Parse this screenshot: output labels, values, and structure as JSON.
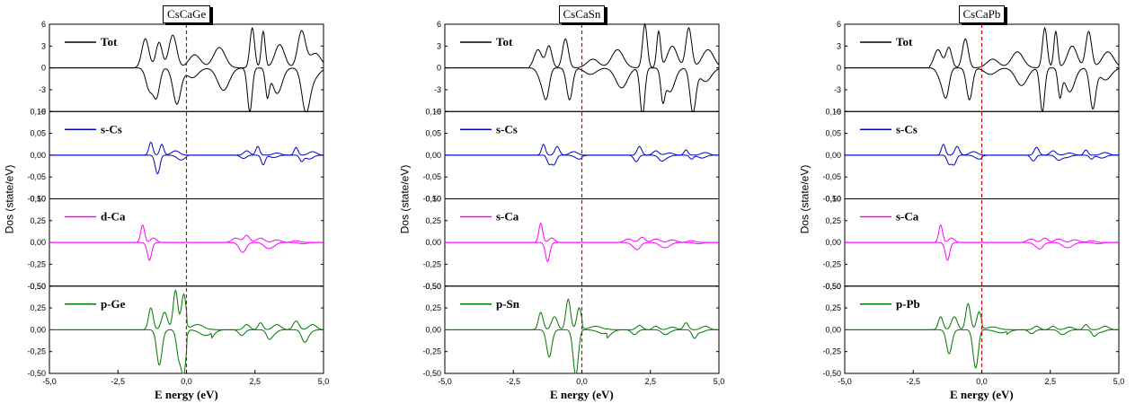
{
  "chart_data": [
    {
      "type": "line",
      "title": "CsCaGe",
      "xlabel": "E nergy (eV)",
      "ylabel": "Dos (state/eV)",
      "xlim": [
        -5.0,
        5.0
      ],
      "xticks": [
        "-5,0",
        "-2,5",
        "0,0",
        "2,5",
        "5,0"
      ],
      "fermi_level": 0.0,
      "panels": [
        {
          "name": "Tot",
          "color": "#000000",
          "ylim": [
            -6,
            6
          ],
          "yticks": [
            "6",
            "3",
            "0",
            "-3",
            "-6"
          ],
          "peaks": [
            [
              -1.5,
              4.0,
              0.18
            ],
            [
              -1.0,
              3.5,
              0.16
            ],
            [
              -0.5,
              4.5,
              0.2
            ],
            [
              0.3,
              1.8,
              0.3
            ],
            [
              1.2,
              2.8,
              0.3
            ],
            [
              2.4,
              5.5,
              0.12
            ],
            [
              2.8,
              5.0,
              0.1
            ],
            [
              3.4,
              3.2,
              0.25
            ],
            [
              4.2,
              5.0,
              0.2
            ],
            [
              4.7,
              2.0,
              0.3
            ]
          ],
          "asym": 0.15
        },
        {
          "name": "s-Cs",
          "color": "#0000cc",
          "ylim": [
            -0.1,
            0.1
          ],
          "yticks": [
            "0,10",
            "0,05",
            "0,00",
            "-0,05",
            "-0,10"
          ],
          "peaks": [
            [
              -1.3,
              0.03,
              0.1
            ],
            [
              -0.9,
              0.025,
              0.1
            ],
            [
              -0.4,
              0.01,
              0.2
            ],
            [
              2.2,
              0.01,
              0.15
            ],
            [
              2.6,
              0.02,
              0.1
            ],
            [
              3.3,
              0.005,
              0.2
            ],
            [
              4.0,
              0.018,
              0.1
            ],
            [
              4.6,
              0.008,
              0.2
            ]
          ],
          "asym": 0.2
        },
        {
          "name": "d-Ca",
          "color": "#ff00ff",
          "ylim": [
            -0.5,
            0.5
          ],
          "yticks": [
            "0,50",
            "0,25",
            "0,00",
            "-0,25",
            "-0,50"
          ],
          "peaks": [
            [
              -1.6,
              0.2,
              0.1
            ],
            [
              -1.2,
              0.05,
              0.15
            ],
            [
              1.8,
              0.05,
              0.2
            ],
            [
              2.2,
              0.08,
              0.15
            ],
            [
              2.7,
              0.05,
              0.2
            ],
            [
              3.3,
              0.03,
              0.2
            ],
            [
              4.0,
              0.02,
              0.2
            ]
          ],
          "asym": 0.25
        },
        {
          "name": "p-Ge",
          "color": "#007700",
          "ylim": [
            -0.5,
            0.5
          ],
          "yticks": [
            "0,50",
            "0,25",
            "0,00",
            "-0,25",
            "-0,50"
          ],
          "peaks": [
            [
              -1.3,
              0.25,
              0.12
            ],
            [
              -0.8,
              0.2,
              0.15
            ],
            [
              -0.4,
              0.45,
              0.12
            ],
            [
              -0.1,
              0.4,
              0.12
            ],
            [
              0.4,
              0.15,
              0.3
            ],
            [
              2.2,
              0.06,
              0.15
            ],
            [
              2.7,
              0.08,
              0.12
            ],
            [
              3.3,
              0.06,
              0.2
            ],
            [
              4.0,
              0.1,
              0.15
            ],
            [
              4.6,
              0.06,
              0.2
            ]
          ],
          "asym": 0.3
        }
      ]
    },
    {
      "type": "line",
      "title": "CsCaSn",
      "xlabel": "E nergy (eV)",
      "ylabel": "Dos (state/eV)",
      "xlim": [
        -5.0,
        5.0
      ],
      "xticks": [
        "-5,0",
        "-2,5",
        "0,0",
        "2,5",
        "5,0"
      ],
      "fermi_level": 0.0,
      "panels": [
        {
          "name": "Tot",
          "color": "#000000",
          "ylim": [
            -6,
            6
          ],
          "yticks": [
            "6",
            "3",
            "0",
            "-3",
            "-6"
          ],
          "peaks": [
            [
              -1.6,
              2.5,
              0.2
            ],
            [
              -1.2,
              3.0,
              0.15
            ],
            [
              -0.6,
              4.0,
              0.15
            ],
            [
              0.4,
              1.2,
              0.3
            ],
            [
              1.3,
              2.5,
              0.3
            ],
            [
              2.3,
              6.0,
              0.12
            ],
            [
              2.8,
              5.0,
              0.1
            ],
            [
              3.3,
              3.0,
              0.25
            ],
            [
              3.9,
              5.5,
              0.15
            ],
            [
              4.6,
              2.5,
              0.3
            ]
          ],
          "asym": 0.15
        },
        {
          "name": "s-Cs",
          "color": "#0000cc",
          "ylim": [
            -0.1,
            0.1
          ],
          "yticks": [
            "0,10",
            "0,05",
            "0,00",
            "-0,05",
            "-0,10"
          ],
          "peaks": [
            [
              -1.4,
              0.025,
              0.1
            ],
            [
              -0.9,
              0.02,
              0.12
            ],
            [
              -0.3,
              0.008,
              0.2
            ],
            [
              2.1,
              0.02,
              0.12
            ],
            [
              2.7,
              0.01,
              0.15
            ],
            [
              3.2,
              0.005,
              0.2
            ],
            [
              3.8,
              0.012,
              0.1
            ],
            [
              4.5,
              0.006,
              0.2
            ]
          ],
          "asym": 0.2
        },
        {
          "name": "s-Ca",
          "color": "#ff00ff",
          "ylim": [
            -0.5,
            0.5
          ],
          "yticks": [
            "0,50",
            "0,25",
            "0,00",
            "-0,25",
            "-0,50"
          ],
          "peaks": [
            [
              -1.5,
              0.22,
              0.1
            ],
            [
              -1.1,
              0.05,
              0.15
            ],
            [
              1.7,
              0.04,
              0.2
            ],
            [
              2.2,
              0.06,
              0.15
            ],
            [
              2.7,
              0.04,
              0.2
            ],
            [
              3.3,
              0.03,
              0.2
            ],
            [
              4.0,
              0.02,
              0.2
            ]
          ],
          "asym": 0.25
        },
        {
          "name": "p-Sn",
          "color": "#007700",
          "ylim": [
            -0.5,
            0.5
          ],
          "yticks": [
            "0,50",
            "0,25",
            "0,00",
            "-0,25",
            "-0,50"
          ],
          "peaks": [
            [
              -1.5,
              0.2,
              0.12
            ],
            [
              -1.0,
              0.15,
              0.15
            ],
            [
              -0.5,
              0.35,
              0.12
            ],
            [
              -0.1,
              0.25,
              0.12
            ],
            [
              0.5,
              0.1,
              0.3
            ],
            [
              2.1,
              0.05,
              0.15
            ],
            [
              2.7,
              0.04,
              0.15
            ],
            [
              3.3,
              0.03,
              0.2
            ],
            [
              3.8,
              0.08,
              0.12
            ],
            [
              4.5,
              0.04,
              0.2
            ]
          ],
          "asym": 0.3
        }
      ]
    },
    {
      "type": "line",
      "title": "CsCaPb",
      "xlabel": "E nergy (eV)",
      "ylabel": "Dos (state/eV)",
      "xlim": [
        -5.0,
        5.0
      ],
      "xticks": [
        "-5,0",
        "-2,5",
        "0,0",
        "2,5",
        "5,0"
      ],
      "fermi_level": 0.0,
      "panels": [
        {
          "name": "Tot",
          "color": "#000000",
          "ylim": [
            -6,
            6
          ],
          "yticks": [
            "6",
            "3",
            "0",
            "-3",
            "-6"
          ],
          "peaks": [
            [
              -1.6,
              2.5,
              0.2
            ],
            [
              -1.2,
              2.8,
              0.15
            ],
            [
              -0.6,
              4.0,
              0.15
            ],
            [
              0.4,
              1.2,
              0.3
            ],
            [
              1.3,
              2.2,
              0.3
            ],
            [
              2.3,
              5.5,
              0.12
            ],
            [
              2.7,
              5.0,
              0.1
            ],
            [
              3.3,
              3.0,
              0.25
            ],
            [
              3.9,
              5.0,
              0.15
            ],
            [
              4.6,
              2.2,
              0.3
            ]
          ],
          "asym": 0.15
        },
        {
          "name": "s-Cs",
          "color": "#0000cc",
          "ylim": [
            -0.1,
            0.1
          ],
          "yticks": [
            "0,10",
            "0,05",
            "0,00",
            "-0,05",
            "-0,10"
          ],
          "peaks": [
            [
              -1.4,
              0.025,
              0.1
            ],
            [
              -0.9,
              0.02,
              0.12
            ],
            [
              -0.3,
              0.008,
              0.2
            ],
            [
              2.0,
              0.018,
              0.12
            ],
            [
              2.6,
              0.01,
              0.15
            ],
            [
              3.2,
              0.005,
              0.2
            ],
            [
              3.8,
              0.012,
              0.1
            ],
            [
              4.5,
              0.006,
              0.2
            ]
          ],
          "asym": 0.2
        },
        {
          "name": "s-Ca",
          "color": "#ff00ff",
          "ylim": [
            -0.5,
            0.5
          ],
          "yticks": [
            "0,50",
            "0,25",
            "0,00",
            "-0,25",
            "-0,50"
          ],
          "peaks": [
            [
              -1.5,
              0.2,
              0.1
            ],
            [
              -1.1,
              0.05,
              0.15
            ],
            [
              1.8,
              0.04,
              0.2
            ],
            [
              2.3,
              0.05,
              0.15
            ],
            [
              2.8,
              0.04,
              0.2
            ],
            [
              3.4,
              0.03,
              0.2
            ],
            [
              4.0,
              0.02,
              0.2
            ]
          ],
          "asym": 0.25
        },
        {
          "name": "p-Pb",
          "color": "#007700",
          "ylim": [
            -0.5,
            0.5
          ],
          "yticks": [
            "0,50",
            "0,25",
            "0,00",
            "-0,25",
            "-0,50"
          ],
          "peaks": [
            [
              -1.5,
              0.15,
              0.12
            ],
            [
              -1.0,
              0.15,
              0.15
            ],
            [
              -0.5,
              0.3,
              0.12
            ],
            [
              -0.1,
              0.2,
              0.12
            ],
            [
              0.4,
              0.08,
              0.3
            ],
            [
              2.0,
              0.04,
              0.15
            ],
            [
              2.6,
              0.04,
              0.15
            ],
            [
              3.2,
              0.03,
              0.2
            ],
            [
              3.8,
              0.06,
              0.12
            ],
            [
              4.5,
              0.04,
              0.2
            ]
          ],
          "asym": 0.3
        }
      ]
    }
  ]
}
